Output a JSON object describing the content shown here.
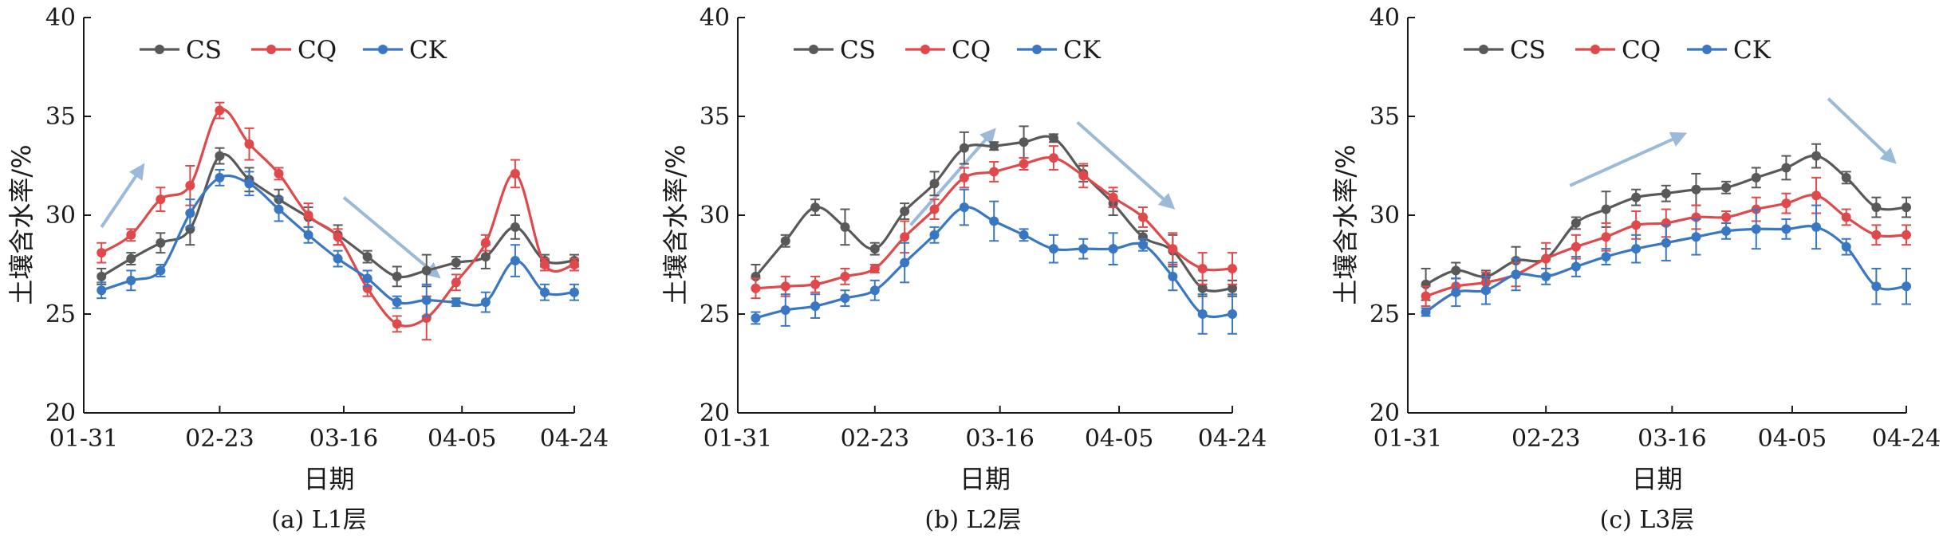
{
  "colors": {
    "CS": "#595959",
    "CQ": "#e0494b",
    "CK": "#3a77c2",
    "trend_arrow": "#9bbad8"
  },
  "chart_data": [
    {
      "type": "line",
      "caption": "(a) L1层",
      "xlabel": "日期",
      "ylabel": "土壤含水率/%",
      "ylim": [
        20,
        40
      ],
      "yticks": [
        20,
        25,
        30,
        35,
        40
      ],
      "xtick_labels": [
        "01-31",
        "02-23",
        "03-16",
        "04-05",
        "04-24"
      ],
      "xrange": [
        0,
        83
      ],
      "xtick_positions": [
        0,
        23,
        44,
        64,
        83
      ],
      "x": [
        3,
        8,
        13,
        18,
        23,
        28,
        33,
        38,
        43,
        48,
        53,
        58,
        63,
        68,
        73,
        78,
        83
      ],
      "series": [
        {
          "name": "CS",
          "values": [
            26.9,
            27.8,
            28.6,
            29.3,
            33.0,
            31.8,
            30.8,
            29.9,
            29.0,
            27.9,
            26.9,
            27.2,
            27.6,
            27.9,
            29.4,
            27.7,
            27.7
          ],
          "errors": [
            0.4,
            0.3,
            0.5,
            0.8,
            0.4,
            0.6,
            0.5,
            0.5,
            0.5,
            0.3,
            0.5,
            0.8,
            0.3,
            0.6,
            0.6,
            0.3,
            0.3
          ]
        },
        {
          "name": "CQ",
          "values": [
            28.1,
            29.0,
            30.8,
            31.5,
            35.3,
            33.6,
            32.1,
            30.0,
            28.9,
            26.3,
            24.5,
            24.8,
            26.6,
            28.6,
            32.1,
            27.5,
            27.5
          ],
          "errors": [
            0.5,
            0.3,
            0.6,
            1.0,
            0.4,
            0.8,
            0.3,
            0.6,
            0.4,
            0.4,
            0.4,
            1.1,
            0.4,
            0.4,
            0.7,
            0.3,
            0.3
          ]
        },
        {
          "name": "CK",
          "values": [
            26.2,
            26.7,
            27.2,
            30.1,
            31.9,
            31.6,
            30.3,
            29.0,
            27.8,
            26.8,
            25.6,
            25.7,
            25.6,
            25.6,
            27.7,
            26.1,
            26.1
          ],
          "errors": [
            0.4,
            0.5,
            0.3,
            0.7,
            0.4,
            0.6,
            0.6,
            0.4,
            0.4,
            0.4,
            0.3,
            0.8,
            0.2,
            0.5,
            0.8,
            0.4,
            0.4
          ]
        }
      ],
      "trend_arrows": [
        {
          "x1": 3,
          "y1": 29.4,
          "x2": 10,
          "y2": 32.5
        },
        {
          "x1": 44,
          "y1": 30.9,
          "x2": 60,
          "y2": 26.9
        }
      ]
    },
    {
      "type": "line",
      "caption": "(b) L2层",
      "xlabel": "日期",
      "ylabel": "土壤含水率/%",
      "ylim": [
        20,
        40
      ],
      "yticks": [
        20,
        25,
        30,
        35,
        40
      ],
      "xtick_labels": [
        "01-31",
        "02-23",
        "03-16",
        "04-05",
        "04-24"
      ],
      "xrange": [
        0,
        83
      ],
      "xtick_positions": [
        0,
        23,
        44,
        64,
        83
      ],
      "x": [
        3,
        8,
        13,
        18,
        23,
        28,
        33,
        38,
        43,
        48,
        53,
        58,
        63,
        68,
        73,
        78,
        83
      ],
      "series": [
        {
          "name": "CS",
          "values": [
            26.9,
            28.7,
            30.4,
            29.4,
            28.3,
            30.2,
            31.6,
            33.4,
            33.5,
            33.7,
            33.9,
            32.1,
            30.6,
            28.9,
            28.2,
            26.3,
            26.3
          ],
          "errors": [
            0.6,
            0.3,
            0.4,
            0.9,
            0.3,
            0.4,
            0.6,
            0.8,
            0.2,
            0.8,
            0.2,
            0.4,
            0.6,
            0.3,
            0.8,
            0.4,
            0.4
          ]
        },
        {
          "name": "CQ",
          "values": [
            26.3,
            26.4,
            26.5,
            26.9,
            27.3,
            28.9,
            30.3,
            31.9,
            32.2,
            32.6,
            32.9,
            32.0,
            30.9,
            29.9,
            28.3,
            27.3,
            27.3
          ],
          "errors": [
            0.5,
            0.5,
            0.4,
            0.4,
            0.2,
            0.8,
            0.5,
            0.5,
            0.5,
            0.3,
            0.6,
            0.6,
            0.5,
            0.5,
            0.8,
            0.8,
            0.8
          ]
        },
        {
          "name": "CK",
          "values": [
            24.8,
            25.2,
            25.4,
            25.8,
            26.2,
            27.6,
            29.0,
            30.4,
            29.7,
            29.0,
            28.3,
            28.3,
            28.3,
            28.5,
            26.9,
            25.0,
            25.0
          ],
          "errors": [
            0.3,
            0.8,
            0.6,
            0.4,
            0.5,
            1.0,
            0.4,
            0.9,
            1.0,
            0.3,
            0.7,
            0.5,
            0.8,
            0.3,
            0.7,
            1.0,
            1.0
          ]
        }
      ],
      "trend_arrows": [
        {
          "x1": 29,
          "y1": 29.5,
          "x2": 43,
          "y2": 34.3
        },
        {
          "x1": 57,
          "y1": 34.7,
          "x2": 73,
          "y2": 30.4
        }
      ]
    },
    {
      "type": "line",
      "caption": "(c) L3层",
      "xlabel": "日期",
      "ylabel": "土壤含水率/%",
      "ylim": [
        20,
        40
      ],
      "yticks": [
        20,
        25,
        30,
        35,
        40
      ],
      "xtick_labels": [
        "01-31",
        "02-23",
        "03-16",
        "04-05",
        "04-24"
      ],
      "xrange": [
        0,
        83
      ],
      "xtick_positions": [
        0,
        23,
        44,
        64,
        83
      ],
      "x": [
        3,
        8,
        13,
        18,
        23,
        28,
        33,
        38,
        43,
        48,
        53,
        58,
        63,
        68,
        73,
        78,
        83
      ],
      "series": [
        {
          "name": "CS",
          "values": [
            26.5,
            27.2,
            26.9,
            27.7,
            27.8,
            29.6,
            30.3,
            30.9,
            31.1,
            31.3,
            31.4,
            31.9,
            32.4,
            33.0,
            31.9,
            30.4,
            30.4
          ],
          "errors": [
            0.8,
            0.4,
            0.3,
            0.7,
            0.5,
            0.3,
            0.9,
            0.4,
            0.4,
            0.8,
            0.3,
            0.5,
            0.6,
            0.6,
            0.3,
            0.5,
            0.5
          ]
        },
        {
          "name": "CQ",
          "values": [
            25.9,
            26.4,
            26.6,
            27.0,
            27.8,
            28.4,
            28.9,
            29.5,
            29.6,
            29.9,
            29.9,
            30.3,
            30.6,
            31.0,
            29.9,
            29.0,
            29.0
          ],
          "errors": [
            0.5,
            0.4,
            0.5,
            0.6,
            0.8,
            0.6,
            0.7,
            0.7,
            0.7,
            0.6,
            0.3,
            0.6,
            0.5,
            0.9,
            0.4,
            0.5,
            0.5
          ]
        },
        {
          "name": "CK",
          "values": [
            25.1,
            26.1,
            26.2,
            27.0,
            26.9,
            27.4,
            27.9,
            28.3,
            28.6,
            28.9,
            29.2,
            29.3,
            29.3,
            29.4,
            28.4,
            26.4,
            26.4
          ],
          "errors": [
            0.2,
            0.7,
            0.7,
            0.8,
            0.4,
            0.5,
            0.4,
            0.7,
            0.9,
            0.9,
            0.4,
            1.0,
            0.5,
            1.1,
            0.4,
            0.9,
            0.9
          ]
        }
      ],
      "trend_arrows": [
        {
          "x1": 27,
          "y1": 31.5,
          "x2": 46,
          "y2": 34.1
        },
        {
          "x1": 70,
          "y1": 35.9,
          "x2": 81,
          "y2": 32.7
        }
      ]
    }
  ]
}
